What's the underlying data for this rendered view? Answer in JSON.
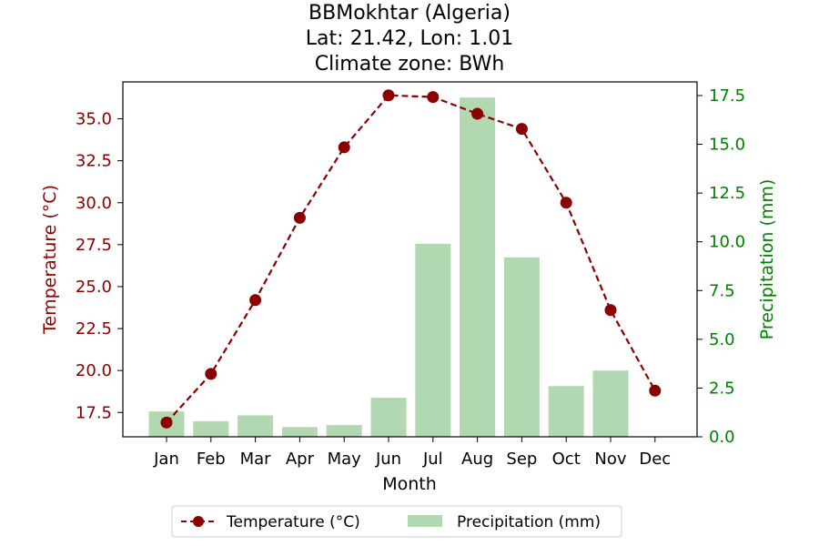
{
  "chart_data": {
    "type": "bar+line",
    "title_lines": [
      "BBMokhtar (Algeria)",
      "Lat: 21.42, Lon: 1.01",
      "Climate zone: BWh"
    ],
    "categories": [
      "Jan",
      "Feb",
      "Mar",
      "Apr",
      "May",
      "Jun",
      "Jul",
      "Aug",
      "Sep",
      "Oct",
      "Nov",
      "Dec"
    ],
    "xlabel": "Month",
    "temperature": {
      "name": "Temperature (°C)",
      "values": [
        16.9,
        19.8,
        24.2,
        29.1,
        33.3,
        36.4,
        36.3,
        35.3,
        34.4,
        30.0,
        23.6,
        18.8
      ],
      "ylabel": "Temperature (°C)",
      "ylim": [
        16.05,
        37.2
      ],
      "ticks": [
        17.5,
        20.0,
        22.5,
        25.0,
        27.5,
        30.0,
        32.5,
        35.0
      ],
      "tick_labels": [
        "17.5",
        "20.0",
        "22.5",
        "25.0",
        "27.5",
        "30.0",
        "32.5",
        "35.0"
      ],
      "color": "#8b0000",
      "style": "dashed line with circle markers"
    },
    "precipitation": {
      "name": "Precipitation (mm)",
      "values": [
        1.3,
        0.8,
        1.1,
        0.5,
        0.6,
        2.0,
        9.9,
        17.4,
        9.2,
        2.6,
        3.4,
        0.0
      ],
      "ylabel": "Precipitation (mm)",
      "ylim": [
        0,
        18.2
      ],
      "ticks": [
        0.0,
        2.5,
        5.0,
        7.5,
        10.0,
        12.5,
        15.0,
        17.5
      ],
      "tick_labels": [
        "0.0",
        "2.5",
        "5.0",
        "7.5",
        "10.0",
        "12.5",
        "15.0",
        "17.5"
      ],
      "color": "#008000",
      "bar_color": "#b2d8b2"
    },
    "legend": {
      "placement": "bottom-center",
      "entries": [
        "Temperature (°C)",
        "Precipitation (mm)"
      ]
    },
    "grid": false
  }
}
